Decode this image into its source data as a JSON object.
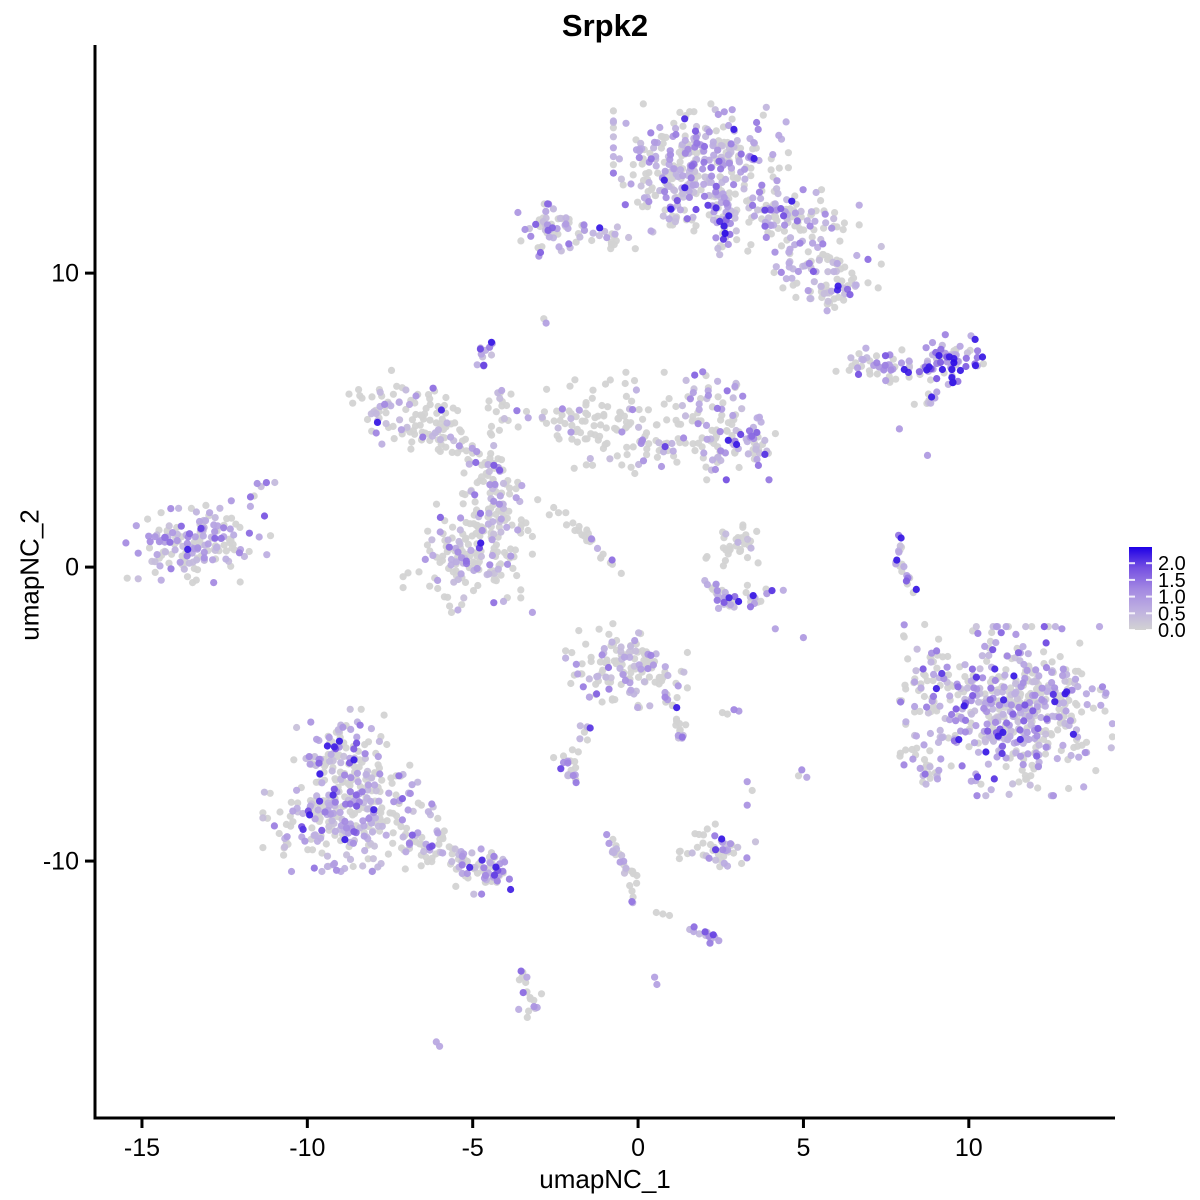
{
  "title": "Srpk2",
  "axes": {
    "x_label": "umapNC_1",
    "y_label": "umapNC_2",
    "x_ticks": [
      -15,
      -10,
      -5,
      0,
      5,
      10
    ],
    "y_ticks": [
      10,
      0,
      -10
    ]
  },
  "legend": {
    "tick_labels": [
      "2.0",
      "1.5",
      "1.0",
      "0.5",
      "0.0"
    ],
    "low_color": "#D3D3D3",
    "high_color": "#1E00E6"
  },
  "chart_data": {
    "type": "scatter",
    "title": "Srpk2",
    "xlabel": "umapNC_1",
    "ylabel": "umapNC_2",
    "xlim": [
      -16.42,
      14.42
    ],
    "ylim": [
      -18.74,
      17.76
    ],
    "grid": false,
    "legend_position": "right",
    "color_domain_max": 2.4,
    "color_stops": [
      [
        0,
        "#D3D3D3"
      ],
      [
        0.25,
        "#BDAEE1"
      ],
      [
        0.5,
        "#A287E2"
      ],
      [
        0.75,
        "#7550E2"
      ],
      [
        1,
        "#1E00E6"
      ]
    ],
    "point_radius": 3.6,
    "clusters": [
      {
        "t": "g",
        "x": 1.9,
        "y": 13.8,
        "sx": 1.15,
        "sy": 0.85,
        "n": 300,
        "f": 0.62,
        "m": 0.55
      },
      {
        "t": "g",
        "x": 0.95,
        "y": 12.55,
        "sx": 0.5,
        "sy": 0.5,
        "n": 55,
        "f": 0.6,
        "m": 0.55
      },
      {
        "t": "s",
        "p": [
          [
            2.55,
            12.7
          ],
          [
            2.6,
            10.95
          ]
        ],
        "j": 0.22,
        "n": 38,
        "f": 0.55,
        "m": 0.5
      },
      {
        "t": "p",
        "p": [
          [
            2.6,
            11.6,
            2.2
          ],
          [
            2.63,
            11.35,
            2.3
          ],
          [
            2.58,
            11.15,
            2.0
          ],
          [
            2.66,
            11.8,
            1.5
          ]
        ]
      },
      {
        "t": "g",
        "x": 4.5,
        "y": 11.9,
        "sx": 0.95,
        "sy": 0.5,
        "n": 100,
        "f": 0.5,
        "m": 0.55
      },
      {
        "t": "p",
        "p": [
          [
            4.0,
            12.15,
            1.6
          ],
          [
            4.4,
            11.95,
            1.8
          ],
          [
            5.2,
            11.6,
            1.2
          ]
        ]
      },
      {
        "t": "g",
        "x": 5.4,
        "y": 10.1,
        "sx": 0.85,
        "sy": 0.6,
        "n": 85,
        "f": 0.45,
        "m": 0.5
      },
      {
        "t": "s",
        "p": [
          [
            5.6,
            9.1
          ],
          [
            6.25,
            9.5
          ]
        ],
        "j": 0.15,
        "n": 12,
        "f": 0.6,
        "m": 0.6
      },
      {
        "t": "g",
        "x": -2.55,
        "y": 11.5,
        "sx": 0.5,
        "sy": 0.42,
        "n": 55,
        "f": 0.6,
        "m": 0.6
      },
      {
        "t": "s",
        "p": [
          [
            -1.7,
            11.45
          ],
          [
            -0.4,
            11.15
          ]
        ],
        "j": 0.18,
        "n": 20,
        "f": 0.5,
        "m": 0.5
      },
      {
        "t": "p",
        "p": [
          [
            -2.95,
            10.7,
            1.6
          ]
        ]
      },
      {
        "t": "g",
        "x": -4.55,
        "y": 7.2,
        "sx": 0.23,
        "sy": 0.3,
        "n": 13,
        "f": 0.9,
        "m": 0.7
      },
      {
        "t": "p",
        "p": [
          [
            -2.85,
            8.45,
            0
          ],
          [
            -2.78,
            8.3,
            0.8
          ]
        ]
      },
      {
        "t": "s",
        "p": [
          [
            6.55,
            6.85
          ],
          [
            8.55,
            6.9
          ]
        ],
        "j": 0.3,
        "n": 50,
        "f": 0.55,
        "m": 0.6
      },
      {
        "t": "g",
        "x": 9.35,
        "y": 7.05,
        "sx": 0.5,
        "sy": 0.38,
        "n": 70,
        "f": 0.85,
        "m": 1.0
      },
      {
        "t": "p",
        "p": [
          [
            9.55,
            6.95,
            2.3
          ],
          [
            9.2,
            6.72,
            2.2
          ],
          [
            9.0,
            7.3,
            1.5
          ],
          [
            8.75,
            3.8,
            0.9
          ]
        ]
      },
      {
        "t": "s",
        "p": [
          [
            8.5,
            5.45
          ],
          [
            9.15,
            6.0
          ]
        ],
        "j": 0.1,
        "n": 9,
        "f": 0.7,
        "m": 0.7
      },
      {
        "t": "p",
        "p": [
          [
            7.9,
            4.7,
            0.9
          ]
        ]
      },
      {
        "t": "s",
        "p": [
          [
            -8.0,
            5.8
          ],
          [
            -5.7,
            4.5
          ]
        ],
        "j": 0.45,
        "n": 100,
        "f": 0.22,
        "m": 0.45
      },
      {
        "t": "g",
        "x": -7.85,
        "y": 5.1,
        "sx": 0.3,
        "sy": 0.4,
        "n": 12,
        "f": 0.85,
        "m": 0.7
      },
      {
        "t": "s",
        "p": [
          [
            -4.0,
            6.1
          ],
          [
            -4.4,
            3.2
          ]
        ],
        "j": 0.2,
        "n": 30,
        "f": 0.3,
        "m": 0.5
      },
      {
        "t": "g",
        "x": -4.3,
        "y": 2.1,
        "sx": 0.55,
        "sy": 0.75,
        "n": 80,
        "f": 0.3,
        "m": 0.5
      },
      {
        "t": "s",
        "p": [
          [
            -5.6,
            4.4
          ],
          [
            -4.6,
            3.2
          ]
        ],
        "j": 0.25,
        "n": 25,
        "f": 0.3,
        "m": 0.5
      },
      {
        "t": "s",
        "p": [
          [
            -2.55,
            1.95
          ],
          [
            -0.55,
            -0.1
          ]
        ],
        "j": 0.12,
        "n": 26,
        "f": 0.35,
        "m": 0.5
      },
      {
        "t": "g",
        "x": -1.05,
        "y": 4.9,
        "sx": 0.8,
        "sy": 0.75,
        "n": 85,
        "f": 0.28,
        "m": 0.5
      },
      {
        "t": "s",
        "p": [
          [
            -3.3,
            4.9
          ],
          [
            -2.1,
            4.9
          ]
        ],
        "j": 0.3,
        "n": 16,
        "f": 0.3,
        "m": 0.5
      },
      {
        "t": "g",
        "x": 2.2,
        "y": 4.35,
        "sx": 0.95,
        "sy": 0.6,
        "n": 100,
        "f": 0.42,
        "m": 0.55
      },
      {
        "t": "g",
        "x": 3.5,
        "y": 4.4,
        "sx": 0.3,
        "sy": 0.5,
        "n": 22,
        "f": 0.8,
        "m": 0.8
      },
      {
        "t": "g",
        "x": 2.1,
        "y": 5.9,
        "sx": 0.5,
        "sy": 0.4,
        "n": 26,
        "f": 0.5,
        "m": 0.55
      },
      {
        "t": "s",
        "p": [
          [
            0.2,
            4.2
          ],
          [
            1.3,
            4.0
          ]
        ],
        "j": 0.2,
        "n": 15,
        "f": 0.3,
        "m": 0.5
      },
      {
        "t": "g",
        "x": -5.15,
        "y": 0.3,
        "sx": 0.85,
        "sy": 0.8,
        "n": 150,
        "f": 0.38,
        "m": 0.55
      },
      {
        "t": "g",
        "x": -13.3,
        "y": 0.9,
        "sx": 0.95,
        "sy": 0.62,
        "n": 165,
        "f": 0.55,
        "m": 0.6
      },
      {
        "t": "s",
        "p": [
          [
            -11.7,
            2.3
          ],
          [
            -11.05,
            3.0
          ]
        ],
        "j": 0.12,
        "n": 7,
        "f": 0.7,
        "m": 0.6
      },
      {
        "t": "g",
        "x": 2.95,
        "y": 0.85,
        "sx": 0.42,
        "sy": 0.35,
        "n": 32,
        "f": 0.25,
        "m": 0.5
      },
      {
        "t": "s",
        "p": [
          [
            2.0,
            -0.55
          ],
          [
            2.9,
            -1.25
          ],
          [
            4.35,
            -0.65
          ]
        ],
        "j": 0.18,
        "n": 42,
        "f": 0.6,
        "m": 0.8
      },
      {
        "t": "p",
        "p": [
          [
            4.05,
            -0.8,
            2.0
          ],
          [
            2.6,
            -1.2,
            1.7
          ],
          [
            3.4,
            -1.35,
            1.4
          ]
        ]
      },
      {
        "t": "s",
        "p": [
          [
            8.05,
            1.2
          ],
          [
            7.8,
            0.3
          ],
          [
            8.35,
            -0.95
          ]
        ],
        "j": 0.08,
        "n": 22,
        "f": 0.6,
        "m": 0.7
      },
      {
        "t": "g",
        "x": 11.35,
        "y": -4.9,
        "sx": 1.3,
        "sy": 1.25,
        "n": 500,
        "f": 0.55,
        "m": 0.6
      },
      {
        "t": "g",
        "x": 8.8,
        "y": -4.2,
        "sx": 0.55,
        "sy": 1.1,
        "n": 55,
        "f": 0.4,
        "m": 0.55
      },
      {
        "t": "s",
        "p": [
          [
            8.3,
            -6.4
          ],
          [
            9.0,
            -7.3
          ]
        ],
        "j": 0.25,
        "n": 20,
        "f": 0.5,
        "m": 0.6
      },
      {
        "t": "g",
        "x": -0.35,
        "y": -3.35,
        "sx": 0.8,
        "sy": 0.62,
        "n": 140,
        "f": 0.35,
        "m": 0.6
      },
      {
        "t": "s",
        "p": [
          [
            0.85,
            -4.3
          ],
          [
            1.2,
            -5.0
          ],
          [
            1.25,
            -5.85
          ]
        ],
        "j": 0.1,
        "n": 22,
        "f": 0.5,
        "m": 0.6
      },
      {
        "t": "s",
        "p": [
          [
            -1.35,
            -5.3
          ],
          [
            -2.25,
            -6.9
          ]
        ],
        "j": 0.12,
        "n": 10,
        "f": 0.4,
        "m": 0.5
      },
      {
        "t": "s",
        "p": [
          [
            -2.3,
            -6.4
          ],
          [
            -1.8,
            -7.4
          ]
        ],
        "j": 0.12,
        "n": 16,
        "f": 0.6,
        "m": 0.6
      },
      {
        "t": "p",
        "p": [
          [
            2.55,
            -4.95,
            0
          ],
          [
            2.9,
            -4.85,
            1.2
          ],
          [
            3.05,
            -4.9,
            0.9
          ],
          [
            2.7,
            -5.0,
            0
          ]
        ]
      },
      {
        "t": "p",
        "p": [
          [
            3.3,
            -7.3,
            0.9
          ],
          [
            3.45,
            -7.6,
            0
          ],
          [
            3.3,
            -8.1,
            1.0
          ]
        ]
      },
      {
        "t": "p",
        "p": [
          [
            4.95,
            -6.9,
            1.1
          ],
          [
            5.1,
            -7.15,
            0.7
          ],
          [
            4.85,
            -7.1,
            0
          ]
        ]
      },
      {
        "t": "p",
        "p": [
          [
            4.15,
            -2.1,
            0.8
          ],
          [
            5.0,
            -2.4,
            0.9
          ]
        ]
      },
      {
        "t": "g",
        "x": -8.9,
        "y": -6.4,
        "sx": 0.62,
        "sy": 0.68,
        "n": 100,
        "f": 0.55,
        "m": 0.6
      },
      {
        "t": "g",
        "x": -8.7,
        "y": -8.4,
        "sx": 1.15,
        "sy": 0.85,
        "n": 300,
        "f": 0.55,
        "m": 0.6
      },
      {
        "t": "s",
        "p": [
          [
            -6.9,
            -9.3
          ],
          [
            -4.4,
            -10.4
          ]
        ],
        "j": 0.35,
        "n": 80,
        "f": 0.5,
        "m": 0.55
      },
      {
        "t": "g",
        "x": -4.35,
        "y": -10.35,
        "sx": 0.3,
        "sy": 0.28,
        "n": 28,
        "f": 0.7,
        "m": 0.7
      },
      {
        "t": "g",
        "x": 2.4,
        "y": -9.5,
        "sx": 0.5,
        "sy": 0.33,
        "n": 42,
        "f": 0.35,
        "m": 0.6
      },
      {
        "t": "s",
        "p": [
          [
            -0.95,
            -9.25
          ],
          [
            -0.55,
            -9.9
          ],
          [
            -0.15,
            -10.6
          ],
          [
            -0.05,
            -11.8
          ]
        ],
        "j": 0.08,
        "n": 26,
        "f": 0.4,
        "m": 0.6
      },
      {
        "t": "p",
        "p": [
          [
            -0.95,
            -9.1,
            1.0
          ],
          [
            -0.88,
            -9.4,
            0.9
          ]
        ]
      },
      {
        "t": "p",
        "p": [
          [
            0.55,
            -11.75,
            0
          ],
          [
            0.75,
            -11.8,
            0
          ],
          [
            0.95,
            -11.85,
            0
          ]
        ]
      },
      {
        "t": "s",
        "p": [
          [
            1.6,
            -12.25
          ],
          [
            2.65,
            -12.85
          ]
        ],
        "j": 0.08,
        "n": 13,
        "f": 0.65,
        "m": 0.6
      },
      {
        "t": "p",
        "p": [
          [
            0.5,
            -13.95,
            0.8
          ],
          [
            0.57,
            -14.2,
            0.8
          ]
        ]
      },
      {
        "t": "s",
        "p": [
          [
            -3.55,
            -13.75
          ],
          [
            -3.15,
            -14.55
          ],
          [
            -3.45,
            -15.35
          ]
        ],
        "j": 0.12,
        "n": 18,
        "f": 0.5,
        "m": 0.6
      },
      {
        "t": "p",
        "p": [
          [
            -6.1,
            -16.15,
            0.7
          ],
          [
            -6.0,
            -16.3,
            0.7
          ]
        ]
      }
    ]
  }
}
